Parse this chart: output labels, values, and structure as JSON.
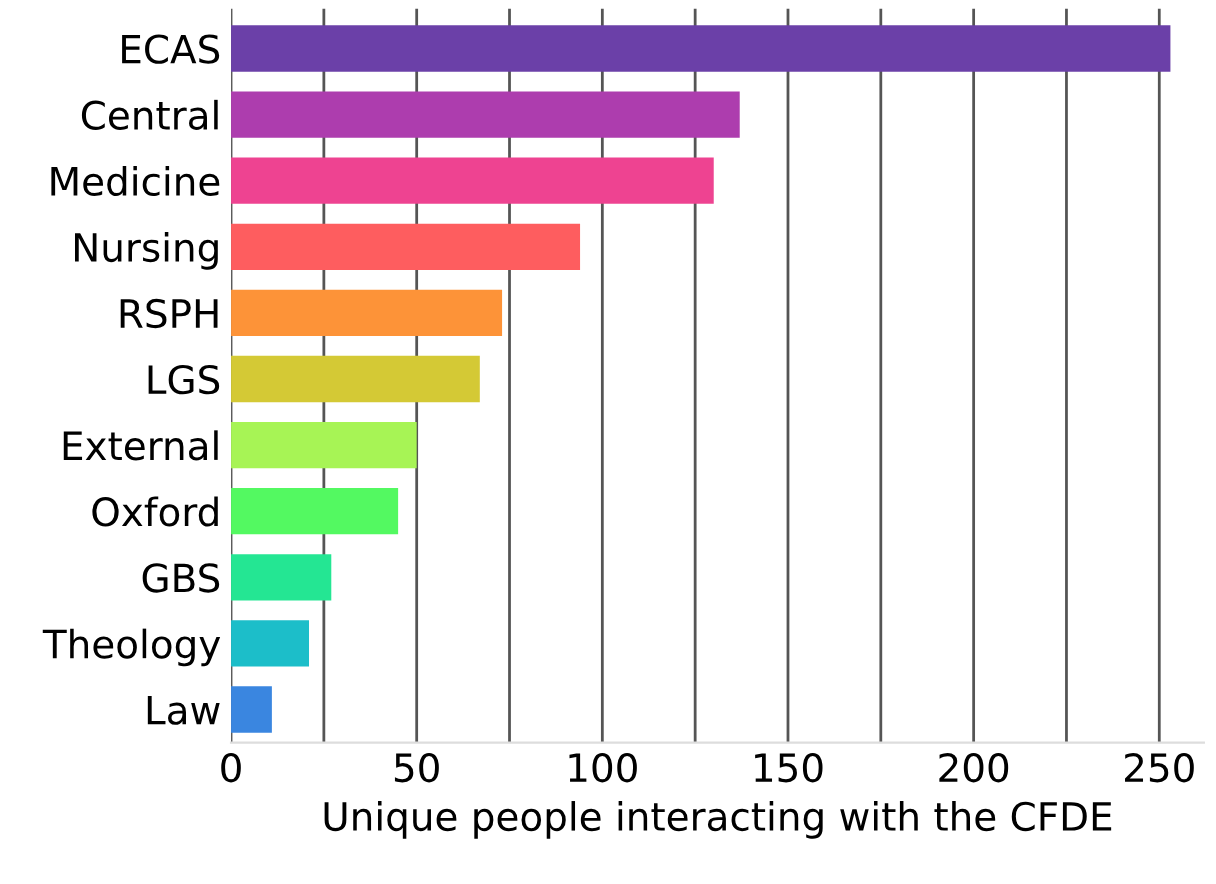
{
  "chart_data": {
    "type": "bar",
    "orientation": "horizontal",
    "xlabel": "Unique people interacting with the CFDE",
    "categories": [
      "ECAS",
      "Central",
      "Medicine",
      "Nursing",
      "RSPH",
      "LGS",
      "External",
      "Oxford",
      "GBS",
      "Theology",
      "Law"
    ],
    "values": [
      253,
      137,
      130,
      94,
      73,
      67,
      50,
      45,
      27,
      21,
      11
    ],
    "colors": [
      "#6b40a8",
      "#ad3dae",
      "#ee4391",
      "#fe5d5f",
      "#fd9338",
      "#d4c935",
      "#a7f455",
      "#53f961",
      "#24e693",
      "#1cbec9",
      "#3a86e0"
    ],
    "xlim": [
      0,
      262
    ],
    "xticks": [
      0,
      {
        "value": 25,
        "label": null
      },
      50,
      {
        "value": 75,
        "label": null
      },
      100,
      {
        "value": 125,
        "label": null
      },
      150,
      {
        "value": 175,
        "label": null
      },
      200,
      {
        "value": 225,
        "label": null
      },
      250
    ],
    "grid": "x"
  }
}
